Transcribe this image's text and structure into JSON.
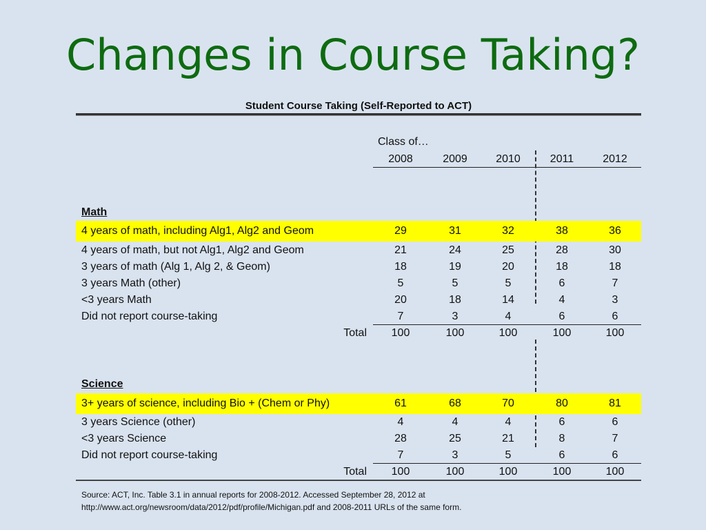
{
  "title": "Changes in Course Taking?",
  "table": {
    "title": "Student Course Taking (Self-Reported to ACT)",
    "class_of_label": "Class of…",
    "years": [
      "2008",
      "2009",
      "2010",
      "2011",
      "2012"
    ],
    "math": {
      "heading": "Math",
      "rows": [
        {
          "label": "4 years of math, including Alg1, Alg2 and Geom",
          "values": [
            "29",
            "31",
            "32",
            "38",
            "36"
          ]
        },
        {
          "label": "4 years of math, but not Alg1, Alg2 and Geom",
          "values": [
            "21",
            "24",
            "25",
            "28",
            "30"
          ]
        },
        {
          "label": "3 years of math (Alg 1, Alg 2, & Geom)",
          "values": [
            "18",
            "19",
            "20",
            "18",
            "18"
          ]
        },
        {
          "label": "3 years Math (other)",
          "values": [
            "5",
            "5",
            "5",
            "6",
            "7"
          ]
        },
        {
          "label": "<3 years Math",
          "values": [
            "20",
            "18",
            "14",
            "4",
            "3"
          ]
        },
        {
          "label": "Did not report course-taking",
          "values": [
            "7",
            "3",
            "4",
            "6",
            "6"
          ]
        }
      ],
      "total": {
        "label": "Total",
        "values": [
          "100",
          "100",
          "100",
          "100",
          "100"
        ]
      }
    },
    "science": {
      "heading": "Science",
      "rows": [
        {
          "label": "3+ years of science, including Bio + (Chem or Phy)",
          "values": [
            "61",
            "68",
            "70",
            "80",
            "81"
          ]
        },
        {
          "label": "3 years Science (other)",
          "values": [
            "4",
            "4",
            "4",
            "6",
            "6"
          ]
        },
        {
          "label": "<3 years Science",
          "values": [
            "28",
            "25",
            "21",
            "8",
            "7"
          ]
        },
        {
          "label": "Did not report course-taking",
          "values": [
            "7",
            "3",
            "5",
            "6",
            "6"
          ]
        }
      ],
      "total": {
        "label": "Total",
        "values": [
          "100",
          "100",
          "100",
          "100",
          "100"
        ]
      }
    },
    "highlight_color": "#ffff00"
  },
  "source": {
    "line1": "Source: ACT, Inc. Table 3.1 in annual reports for 2008-2012. Accessed September 28, 2012 at",
    "line2": "http://www.act.org/newsroom/data/2012/pdf/profile/Michigan.pdf and 2008-2011 URLs of the same form."
  },
  "colors": {
    "title": "#0e6b10",
    "background": "#d9e3ef"
  }
}
